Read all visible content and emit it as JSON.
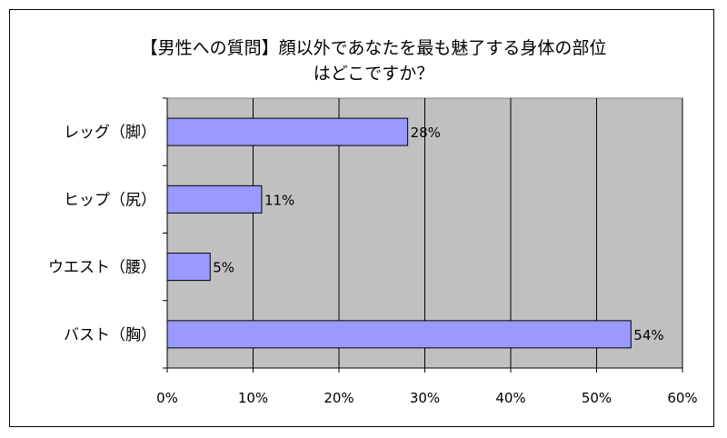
{
  "chart_data": {
    "type": "bar",
    "orientation": "horizontal",
    "title": "【男性への質問】顔以外であなたを最も魅了する身体の部位\nはどこですか？",
    "categories": [
      "レッグ（脚）",
      "ヒップ（尻）",
      "ウエスト（腰）",
      "バスト（胸）"
    ],
    "values": [
      28,
      11,
      5,
      54
    ],
    "data_labels": [
      "28%",
      "11%",
      "5%",
      "54%"
    ],
    "xlim": [
      0,
      60
    ],
    "x_ticks": [
      "0%",
      "10%",
      "20%",
      "30%",
      "40%",
      "50%",
      "60%"
    ],
    "grid": true,
    "legend": "none",
    "colors": {
      "bar_fill": "#9999ff",
      "bar_stroke": "#000000",
      "plot_bg": "#c0c0c0",
      "grid": "#000000"
    }
  }
}
